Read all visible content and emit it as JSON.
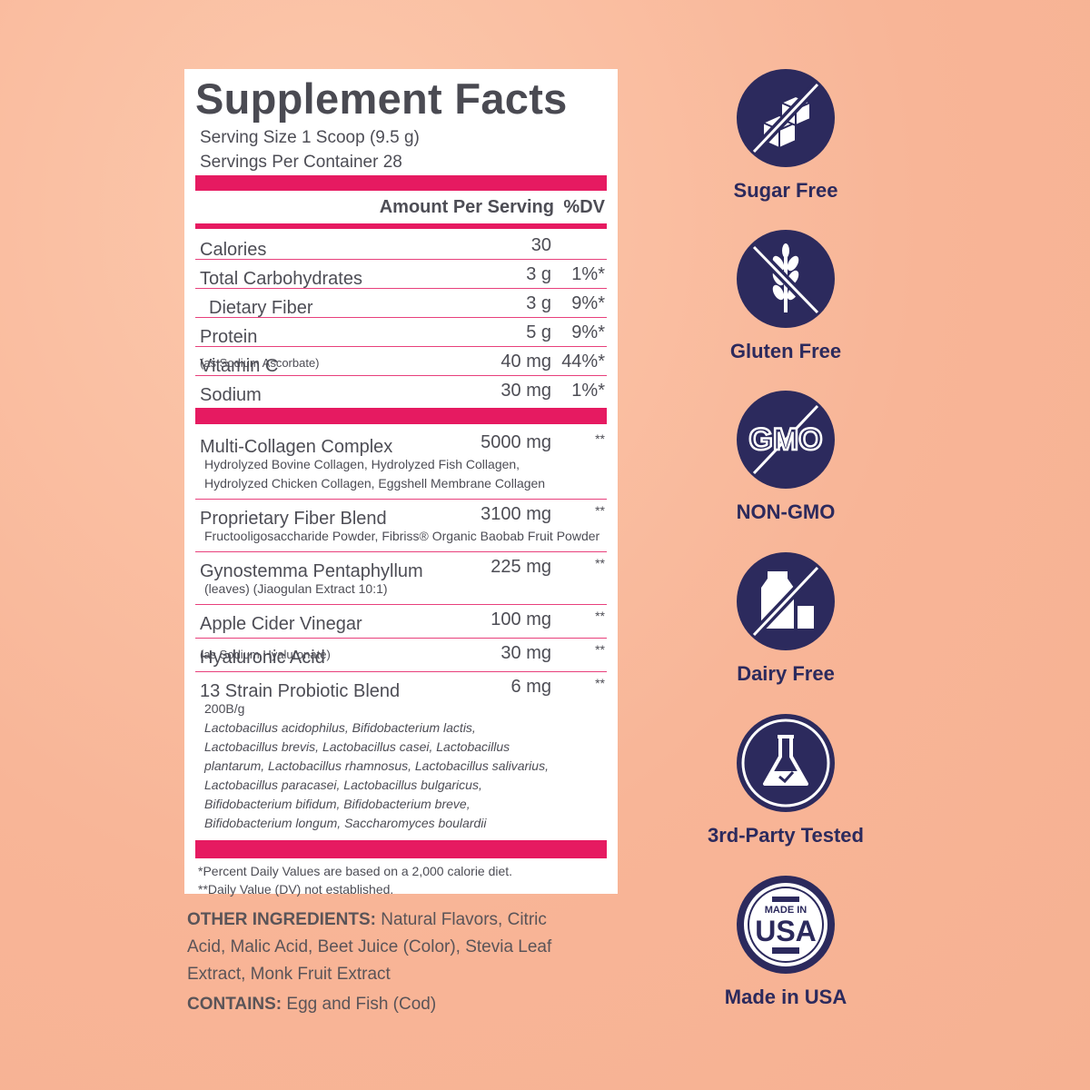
{
  "label": {
    "title": "Supplement Facts",
    "serving_size": "Serving Size 1 Scoop (9.5 g)",
    "servings_per_container": "Servings Per Container 28",
    "header": {
      "amount": "Amount Per Serving",
      "dv": "%DV"
    },
    "nutrients": [
      {
        "name": "Calories",
        "amount": "30"
      },
      {
        "name": "Total Carbohydrates",
        "amount": "3 g",
        "dv": "1%*"
      },
      {
        "name": "Dietary Fiber",
        "amount": "3 g",
        "dv": "9%*",
        "indent": true
      },
      {
        "name": "Protein",
        "amount": "5 g",
        "dv": "9%*"
      },
      {
        "name": "Vitamin C",
        "note": "(as Sodium Ascorbate)",
        "amount": "40 mg",
        "dv": "44%*"
      },
      {
        "name": "Sodium",
        "amount": "30 mg",
        "dv": "1%*"
      }
    ],
    "blends": [
      {
        "name": "Multi-Collagen Complex",
        "amount": "5000 mg",
        "dv": "**",
        "details": [
          "Hydrolyzed Bovine Collagen, Hydrolyzed Fish Collagen,",
          "Hydrolyzed Chicken Collagen, Eggshell Membrane Collagen"
        ]
      },
      {
        "name": "Proprietary Fiber Blend",
        "amount": "3100 mg",
        "dv": "**",
        "details": [
          "Fructooligosaccharide Powder, Fibriss® Organic Baobab Fruit Powder"
        ]
      },
      {
        "name": "Gynostemma Pentaphyllum",
        "amount": "225 mg",
        "dv": "**",
        "details": [
          "(leaves) (Jiaogulan Extract 10:1)"
        ]
      },
      {
        "name": "Apple Cider Vinegar",
        "amount": "100 mg",
        "dv": "**"
      },
      {
        "name": "Hyaluronic Acid",
        "note": "(as Sodium Hyaluronate)",
        "amount": "30 mg",
        "dv": "**"
      },
      {
        "name": "13 Strain Probiotic Blend",
        "amount": "6 mg",
        "dv": "**",
        "details": [
          "200B/g"
        ],
        "strains": [
          "Lactobacillus acidophilus, Bifidobacterium lactis,",
          "Lactobacillus brevis, Lactobacillus casei, Lactobacillus",
          "plantarum, Lactobacillus rhamnosus, Lactobacillus salivarius,",
          "Lactobacillus paracasei, Lactobacillus bulgaricus,",
          "Bifidobacterium bifidum, Bifidobacterium breve,",
          "Bifidobacterium longum, Saccharomyces boulardii"
        ]
      }
    ],
    "footnotes": [
      "*Percent Daily Values are based on a 2,000 calorie diet.",
      "**Daily Value (DV) not established."
    ]
  },
  "other_ingredients": {
    "heading": "OTHER INGREDIENTS:",
    "text": "Natural Flavors, Citric Acid, Malic Acid, Beet Juice (Color), Stevia Leaf Extract, Monk Fruit Extract"
  },
  "contains": {
    "heading": "CONTAINS:",
    "text": "Egg and Fish (Cod)"
  },
  "badges": [
    "Sugar Free",
    "Gluten Free",
    "NON-GMO",
    "Dairy Free",
    "3rd-Party Tested",
    "Made in USA"
  ],
  "usa_icon": {
    "top": "MADE IN",
    "main": "USA"
  },
  "gmo_icon": "GMO"
}
